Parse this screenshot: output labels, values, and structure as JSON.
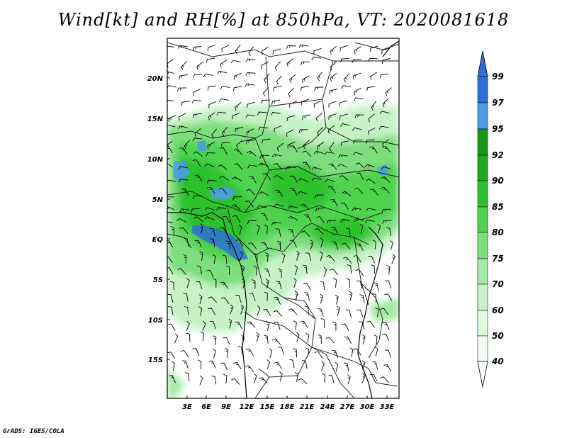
{
  "title": "Wind[kt] and RH[%] at 850hPa, VT: 2020081618",
  "credit": "GrADS: IGES/COLA",
  "map": {
    "lat_ticks": [
      "20N",
      "15N",
      "10N",
      "5N",
      "EQ",
      "5S",
      "10S",
      "15S"
    ],
    "lon_ticks": [
      "3E",
      "6E",
      "9E",
      "12E",
      "15E",
      "18E",
      "21E",
      "24E",
      "27E",
      "30E",
      "33E"
    ]
  },
  "colorbar": {
    "levels": [
      "99",
      "97",
      "95",
      "92",
      "90",
      "85",
      "80",
      "75",
      "70",
      "60",
      "50",
      "40"
    ],
    "colors": {
      "above99": "#2f6fd6",
      "97_99": "#2f6fd6",
      "95_97": "#4a9be6",
      "92_95": "#189618",
      "90_92": "#1eab1e",
      "85_90": "#2fc12f",
      "80_85": "#4fd34f",
      "75_80": "#7ede7e",
      "70_75": "#a6e9a6",
      "60_70": "#c6f2c6",
      "50_60": "#dff8df",
      "40_50": "#f2fcf2",
      "below40": "#ffffff"
    }
  }
}
